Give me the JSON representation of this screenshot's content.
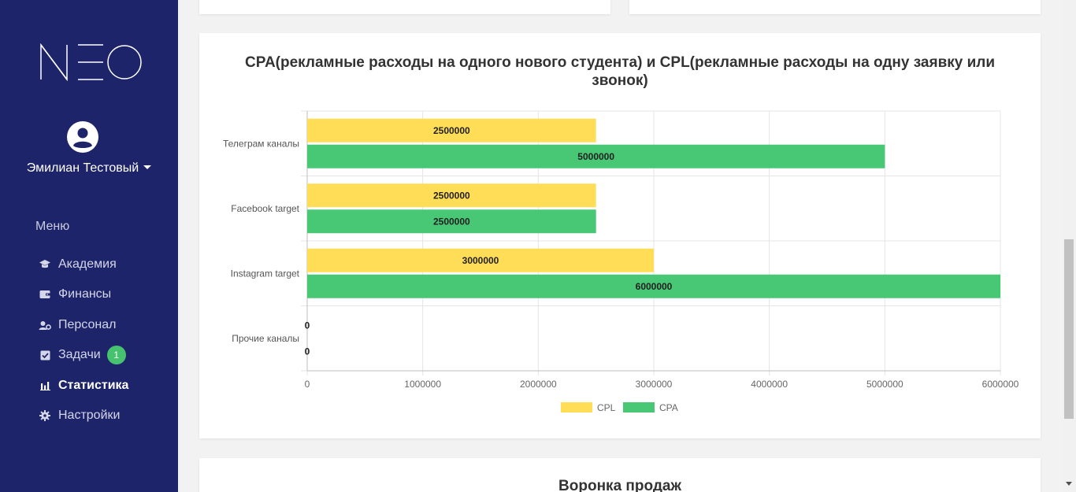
{
  "sidebar": {
    "user_name": "Эмилиан Тестовый",
    "menu_heading": "Меню",
    "items": [
      {
        "label": "Академия",
        "icon": "graduation-cap-icon"
      },
      {
        "label": "Финансы",
        "icon": "wallet-icon"
      },
      {
        "label": "Персонал",
        "icon": "users-cog-icon"
      },
      {
        "label": "Задачи",
        "icon": "check-square-icon",
        "badge": "1"
      },
      {
        "label": "Статистика",
        "icon": "bar-chart-icon",
        "active": true
      },
      {
        "label": "Настройки",
        "icon": "gear-icon"
      }
    ]
  },
  "colors": {
    "sidebar_bg": "#1e2469",
    "cpl": "#ffdd57",
    "cpa": "#48c774",
    "badge": "#47c36f"
  },
  "chart_data": {
    "type": "bar",
    "orientation": "horizontal",
    "title": "CPA(рекламные расходы на одного нового студента) и CPL(рекламные расходы на одну заявку или звонок)",
    "categories": [
      "Телеграм каналы",
      "Facebook target",
      "Instagram target",
      "Прочие каналы"
    ],
    "series": [
      {
        "name": "CPL",
        "values": [
          2500000,
          2500000,
          3000000,
          0
        ],
        "color": "#ffdd57"
      },
      {
        "name": "CPA",
        "values": [
          5000000,
          2500000,
          6000000,
          0
        ],
        "color": "#48c774"
      }
    ],
    "xlim": [
      0,
      6000000
    ],
    "xticks": [
      "0",
      "1000000",
      "2000000",
      "3000000",
      "4000000",
      "5000000",
      "6000000"
    ],
    "grid": true,
    "legend_position": "bottom"
  },
  "funnel": {
    "title": "Воронка продаж"
  }
}
